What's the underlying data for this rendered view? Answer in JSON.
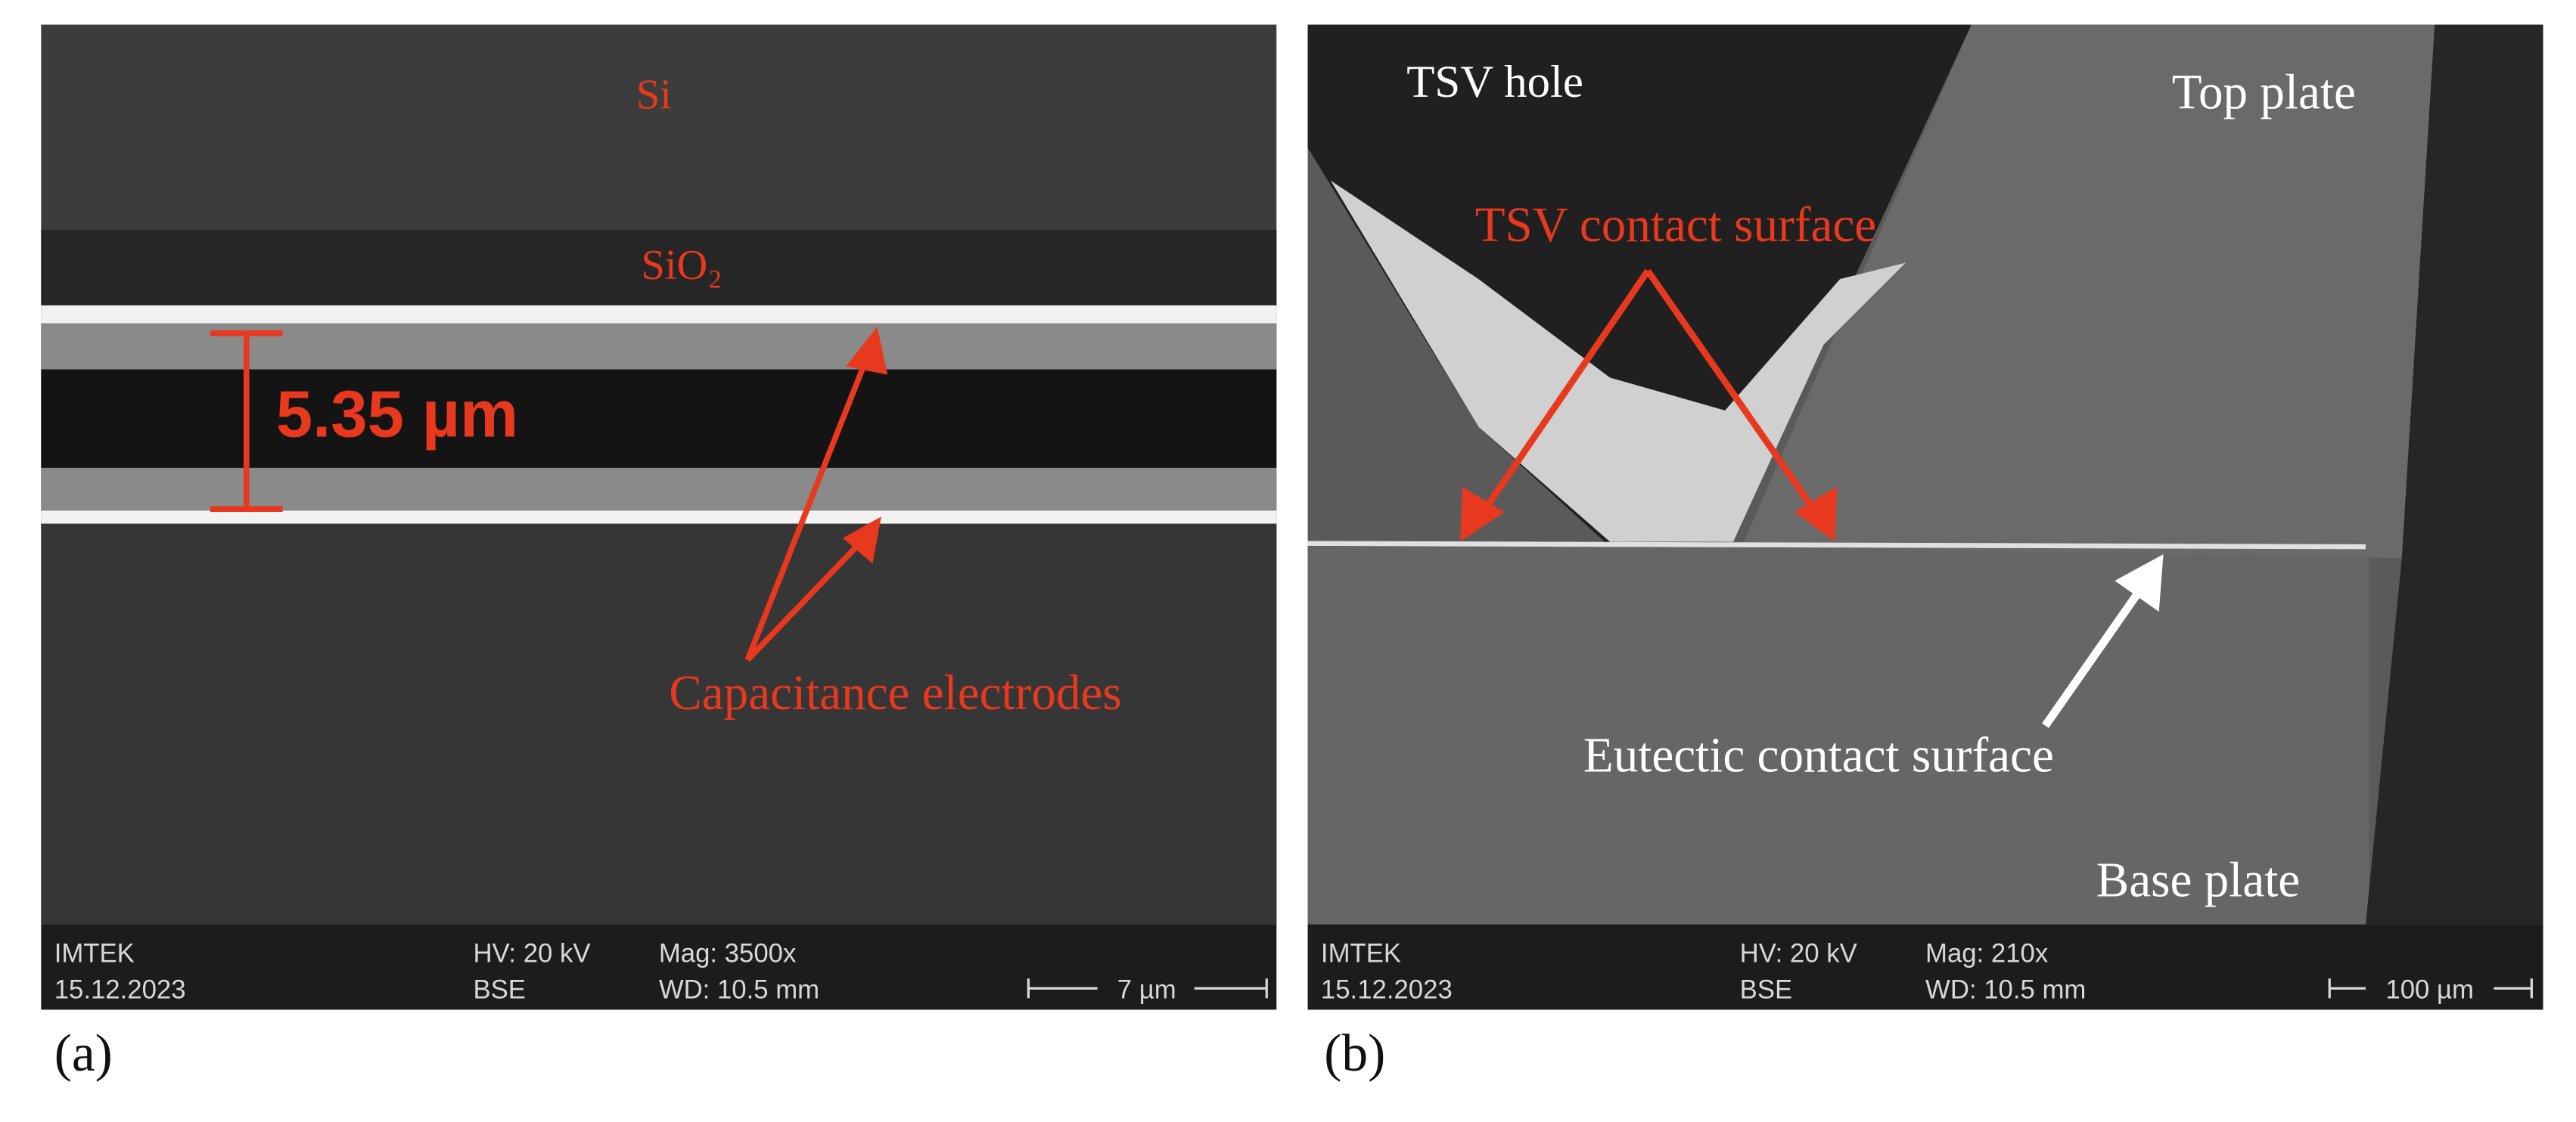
{
  "panels": [
    {
      "label": "(a)",
      "annotations": {
        "si": "Si",
        "sio2": "SiO₂",
        "dimension": "5.35 µm",
        "electrodes": "Capacitance electrodes"
      },
      "info_bar": {
        "institute": "IMTEK",
        "date": "15.12.2023",
        "hv": "HV: 20 kV",
        "detector": "BSE",
        "mag": "Mag: 3500x",
        "wd": "WD: 10.5 mm",
        "scale": "7 µm"
      }
    },
    {
      "label": "(b)",
      "annotations": {
        "tsv_hole": "TSV hole",
        "top_plate": "Top plate",
        "tsv_contact": "TSV contact surface",
        "eutectic_contact": "Eutectic contact surface",
        "base_plate": "Base plate"
      },
      "info_bar": {
        "institute": "IMTEK",
        "date": "15.12.2023",
        "hv": "HV: 20 kV",
        "detector": "BSE",
        "mag": "Mag: 210x",
        "wd": "WD: 10.5 mm",
        "scale": "100 µm"
      }
    }
  ]
}
